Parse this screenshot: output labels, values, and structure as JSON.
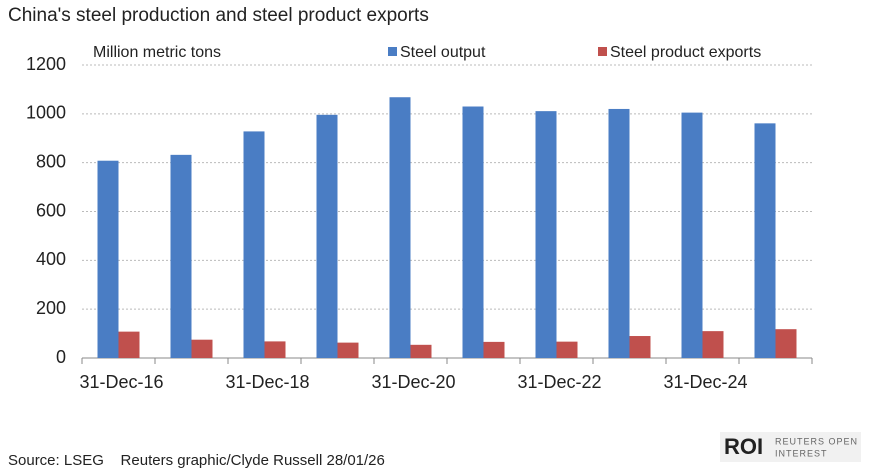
{
  "chart_data": {
    "type": "bar",
    "title": "China's steel production and steel product exports",
    "y_axis_label": "Million metric tons",
    "categories": [
      "31-Dec-16",
      null,
      "31-Dec-18",
      null,
      "31-Dec-20",
      null,
      "31-Dec-22",
      null,
      "31-Dec-24",
      null
    ],
    "series": [
      {
        "name": "Steel output",
        "color": "#4a7dc4",
        "values": [
          808,
          832,
          928,
          996,
          1068,
          1030,
          1011,
          1020,
          1005,
          961
        ]
      },
      {
        "name": "Steel product exports",
        "color": "#c0504d",
        "values": [
          108,
          75,
          68,
          63,
          54,
          66,
          67,
          90,
          110,
          118
        ]
      }
    ],
    "ylim": [
      0,
      1200
    ],
    "yticks": [
      0,
      200,
      400,
      600,
      800,
      1000,
      1200
    ],
    "grid": true,
    "source": "Source: LSEG    Reuters graphic/Clyde Russell 28/01/26",
    "logo": {
      "mark": "ROI",
      "line1": "REUTERS OPEN",
      "line2": "INTEREST"
    }
  }
}
